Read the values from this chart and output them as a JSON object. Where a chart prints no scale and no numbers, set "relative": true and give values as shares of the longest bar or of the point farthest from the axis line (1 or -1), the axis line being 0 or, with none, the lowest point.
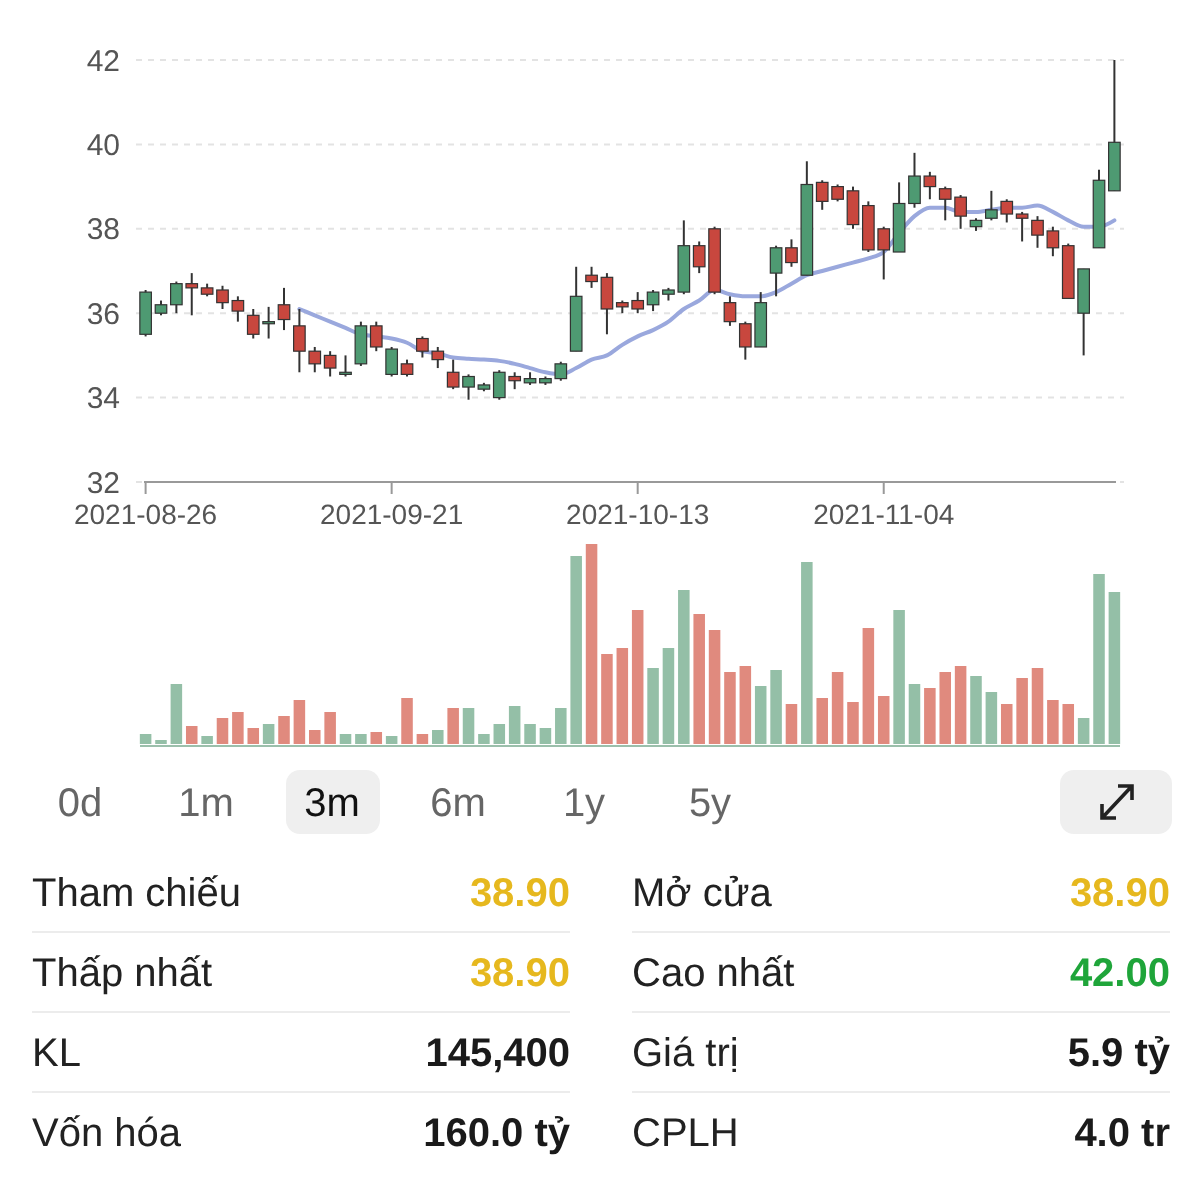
{
  "chart_data": [
    {
      "type": "candlestick",
      "categories": [
        "2021-08-26",
        null,
        null,
        null,
        null,
        null,
        null,
        null,
        null,
        null,
        null,
        null,
        null,
        null,
        null,
        null,
        "2021-09-21",
        null,
        null,
        null,
        null,
        null,
        null,
        null,
        null,
        null,
        null,
        null,
        null,
        null,
        null,
        null,
        "2021-10-13",
        null,
        null,
        null,
        null,
        null,
        null,
        null,
        null,
        null,
        null,
        null,
        null,
        null,
        null,
        null,
        "2021-11-04",
        null,
        null,
        null,
        null,
        null,
        null,
        null,
        null,
        null,
        null,
        null,
        null,
        null,
        null,
        null
      ],
      "ohlc": [
        [
          35.5,
          36.55,
          35.45,
          36.5
        ],
        [
          36.0,
          36.3,
          35.95,
          36.2
        ],
        [
          36.2,
          36.75,
          36.0,
          36.7
        ],
        [
          36.7,
          36.95,
          35.95,
          36.6
        ],
        [
          36.6,
          36.7,
          36.4,
          36.45
        ],
        [
          36.55,
          36.65,
          36.1,
          36.25
        ],
        [
          36.3,
          36.4,
          35.8,
          36.05
        ],
        [
          35.95,
          36.1,
          35.4,
          35.5
        ],
        [
          35.75,
          36.15,
          35.4,
          35.8
        ],
        [
          36.2,
          36.6,
          35.6,
          35.85
        ],
        [
          35.7,
          36.1,
          34.6,
          35.1
        ],
        [
          35.1,
          35.2,
          34.6,
          34.8
        ],
        [
          35.0,
          35.1,
          34.5,
          34.7
        ],
        [
          34.55,
          35.0,
          34.5,
          34.6
        ],
        [
          34.8,
          35.8,
          34.75,
          35.7
        ],
        [
          35.7,
          35.8,
          35.1,
          35.2
        ],
        [
          34.55,
          35.2,
          34.5,
          35.15
        ],
        [
          34.8,
          34.9,
          34.5,
          34.55
        ],
        [
          35.4,
          35.45,
          34.95,
          35.1
        ],
        [
          35.1,
          35.2,
          34.7,
          34.9
        ],
        [
          34.6,
          34.9,
          34.2,
          34.25
        ],
        [
          34.25,
          34.55,
          33.95,
          34.5
        ],
        [
          34.2,
          34.35,
          34.15,
          34.3
        ],
        [
          34.0,
          34.65,
          33.95,
          34.6
        ],
        [
          34.5,
          34.6,
          34.2,
          34.4
        ],
        [
          34.35,
          34.6,
          34.3,
          34.45
        ],
        [
          34.35,
          34.5,
          34.3,
          34.45
        ],
        [
          34.45,
          34.85,
          34.4,
          34.8
        ],
        [
          35.1,
          37.1,
          35.1,
          36.4
        ],
        [
          36.9,
          37.1,
          36.6,
          36.75
        ],
        [
          36.85,
          36.95,
          35.5,
          36.1
        ],
        [
          36.25,
          36.3,
          36.0,
          36.15
        ],
        [
          36.3,
          36.5,
          36.0,
          36.1
        ],
        [
          36.2,
          36.55,
          36.05,
          36.5
        ],
        [
          36.45,
          36.6,
          36.3,
          36.55
        ],
        [
          36.5,
          38.2,
          36.45,
          37.6
        ],
        [
          37.6,
          37.7,
          36.95,
          37.1
        ],
        [
          38.0,
          38.05,
          36.45,
          36.5
        ],
        [
          36.25,
          36.4,
          35.7,
          35.8
        ],
        [
          35.75,
          35.8,
          34.9,
          35.2
        ],
        [
          35.2,
          36.5,
          35.2,
          36.25
        ],
        [
          36.95,
          37.6,
          36.4,
          37.55
        ],
        [
          37.55,
          37.75,
          37.1,
          37.2
        ],
        [
          36.9,
          39.6,
          36.9,
          39.05
        ],
        [
          39.1,
          39.15,
          38.45,
          38.65
        ],
        [
          39.0,
          39.05,
          38.65,
          38.7
        ],
        [
          38.9,
          39.0,
          38.0,
          38.1
        ],
        [
          38.55,
          38.65,
          37.45,
          37.5
        ],
        [
          38.0,
          38.05,
          36.8,
          37.5
        ],
        [
          37.45,
          39.1,
          37.45,
          38.6
        ],
        [
          38.6,
          39.8,
          38.5,
          39.25
        ],
        [
          39.25,
          39.35,
          38.7,
          39.0
        ],
        [
          38.95,
          39.0,
          38.2,
          38.7
        ],
        [
          38.75,
          38.8,
          38.0,
          38.3
        ],
        [
          38.05,
          38.25,
          37.95,
          38.2
        ],
        [
          38.25,
          38.9,
          38.2,
          38.45
        ],
        [
          38.65,
          38.7,
          38.15,
          38.35
        ],
        [
          38.35,
          38.4,
          37.7,
          38.25
        ],
        [
          38.2,
          38.3,
          37.55,
          37.85
        ],
        [
          37.95,
          38.05,
          37.35,
          37.55
        ],
        [
          37.6,
          37.65,
          36.35,
          36.35
        ],
        [
          36.0,
          37.05,
          35.0,
          37.05
        ],
        [
          37.55,
          39.4,
          37.55,
          39.15
        ],
        [
          38.9,
          42.0,
          38.9,
          40.05
        ]
      ],
      "colors": [
        "#4e9a72",
        "#4e9a72",
        "#4e9a72",
        "#c8473e",
        "#c8473e",
        "#c8473e",
        "#c8473e",
        "#c8473e",
        "#4e9a72",
        "#c8473e",
        "#c8473e",
        "#c8473e",
        "#c8473e",
        "#4e9a72",
        "#4e9a72",
        "#c8473e",
        "#4e9a72",
        "#c8473e",
        "#c8473e",
        "#c8473e",
        "#c8473e",
        "#4e9a72",
        "#4e9a72",
        "#4e9a72",
        "#c8473e",
        "#4e9a72",
        "#4e9a72",
        "#4e9a72",
        "#4e9a72",
        "#c8473e",
        "#c8473e",
        "#c8473e",
        "#c8473e",
        "#4e9a72",
        "#4e9a72",
        "#4e9a72",
        "#c8473e",
        "#c8473e",
        "#c8473e",
        "#c8473e",
        "#4e9a72",
        "#4e9a72",
        "#c8473e",
        "#4e9a72",
        "#c8473e",
        "#c8473e",
        "#c8473e",
        "#c8473e",
        "#c8473e",
        "#4e9a72",
        "#4e9a72",
        "#c8473e",
        "#c8473e",
        "#c8473e",
        "#4e9a72",
        "#4e9a72",
        "#c8473e",
        "#c8473e",
        "#c8473e",
        "#c8473e",
        "#c8473e",
        "#4e9a72",
        "#4e9a72",
        "#4e9a72"
      ],
      "series": [
        {
          "type": "line",
          "color": "#9aa8dd",
          "values": [
            null,
            null,
            null,
            null,
            null,
            null,
            null,
            null,
            null,
            null,
            36.1,
            35.95,
            35.8,
            35.65,
            35.5,
            35.45,
            35.4,
            35.3,
            35.1,
            35.05,
            34.95,
            34.92,
            34.9,
            34.87,
            34.8,
            34.7,
            34.6,
            34.55,
            34.7,
            34.9,
            35.0,
            35.25,
            35.45,
            35.6,
            35.8,
            36.1,
            36.3,
            36.55,
            36.45,
            36.4,
            36.4,
            36.5,
            36.7,
            36.9,
            37.0,
            37.1,
            37.2,
            37.3,
            37.45,
            37.9,
            38.3,
            38.5,
            38.5,
            38.4,
            38.4,
            38.45,
            38.5,
            38.5,
            38.55,
            38.4,
            38.2,
            38.05,
            38.05,
            38.2
          ]
        }
      ],
      "ylim": [
        32,
        42
      ],
      "yticks": [
        32,
        34,
        36,
        38,
        40,
        42
      ],
      "grid": "y"
    },
    {
      "type": "bar",
      "relative": true,
      "categories": [
        null,
        null,
        null,
        null,
        null,
        null,
        null,
        null,
        null,
        null,
        null,
        null,
        null,
        null,
        null,
        null,
        null,
        null,
        null,
        null,
        null,
        null,
        null,
        null,
        null,
        null,
        null,
        null,
        null,
        null,
        null,
        null,
        null,
        null,
        null,
        null,
        null,
        null,
        null,
        null,
        null,
        null,
        null,
        null,
        null,
        null,
        null,
        null,
        null,
        null,
        null,
        null,
        null,
        null,
        null,
        null,
        null,
        null,
        null,
        null,
        null,
        null,
        null,
        null
      ],
      "values": [
        0.05,
        0.02,
        0.3,
        0.09,
        0.04,
        0.13,
        0.16,
        0.08,
        0.1,
        0.14,
        0.22,
        0.07,
        0.16,
        0.05,
        0.05,
        0.06,
        0.04,
        0.23,
        0.05,
        0.07,
        0.18,
        0.18,
        0.05,
        0.1,
        0.19,
        0.1,
        0.08,
        0.18,
        0.94,
        1,
        0.45,
        0.48,
        0.67,
        0.38,
        0.48,
        0.77,
        0.65,
        0.57,
        0.36,
        0.39,
        0.29,
        0.37,
        0.2,
        0.91,
        0.23,
        0.36,
        0.21,
        0.58,
        0.24,
        0.67,
        0.3,
        0.28,
        0.36,
        0.39,
        0.34,
        0.26,
        0.2,
        0.33,
        0.38,
        0.22,
        0.2,
        0.13,
        0.85,
        0.76
      ],
      "colors": [
        "#94bfa7",
        "#94bfa7",
        "#94bfa7",
        "#e08a7e",
        "#94bfa7",
        "#e08a7e",
        "#e08a7e",
        "#e08a7e",
        "#94bfa7",
        "#e08a7e",
        "#e08a7e",
        "#e08a7e",
        "#e08a7e",
        "#94bfa7",
        "#94bfa7",
        "#e08a7e",
        "#94bfa7",
        "#e08a7e",
        "#e08a7e",
        "#94bfa7",
        "#e08a7e",
        "#94bfa7",
        "#94bfa7",
        "#94bfa7",
        "#94bfa7",
        "#94bfa7",
        "#94bfa7",
        "#94bfa7",
        "#94bfa7",
        "#e08a7e",
        "#e08a7e",
        "#e08a7e",
        "#e08a7e",
        "#94bfa7",
        "#94bfa7",
        "#94bfa7",
        "#e08a7e",
        "#e08a7e",
        "#e08a7e",
        "#e08a7e",
        "#94bfa7",
        "#94bfa7",
        "#e08a7e",
        "#94bfa7",
        "#e08a7e",
        "#e08a7e",
        "#e08a7e",
        "#e08a7e",
        "#e08a7e",
        "#94bfa7",
        "#94bfa7",
        "#e08a7e",
        "#e08a7e",
        "#e08a7e",
        "#94bfa7",
        "#94bfa7",
        "#e08a7e",
        "#e08a7e",
        "#e08a7e",
        "#e08a7e",
        "#e08a7e",
        "#94bfa7",
        "#94bfa7",
        "#94bfa7"
      ]
    },
    {
      "type": "other",
      "categories": [
        "0d",
        "1m",
        "3m",
        "6m",
        "1y",
        "5y"
      ],
      "annotations": [
        "Tham chiếu",
        "38.90",
        "Mở cửa",
        "38.90",
        "Thấp nhất",
        "38.90",
        "Cao nhất",
        "42.00",
        "KL",
        "145,400",
        "Giá trị",
        "5.9 tỷ",
        "Vốn hóa",
        "160.0 tỷ",
        "CPLH",
        "4.0 tr"
      ],
      "colors": [
        "#222222",
        "#e6b81e",
        "#222222",
        "#e6b81e",
        "#222222",
        "#e6b81e",
        "#222222",
        "#1fa53a",
        "#222222",
        "#1a1a1a",
        "#222222",
        "#1a1a1a",
        "#222222",
        "#1a1a1a",
        "#222222",
        "#1a1a1a"
      ]
    }
  ]
}
